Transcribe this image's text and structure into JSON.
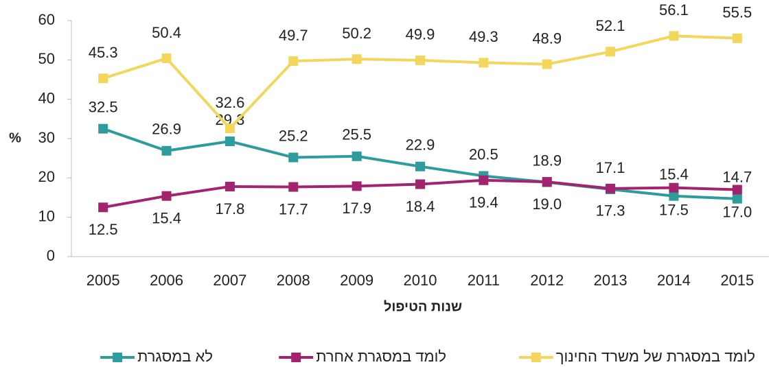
{
  "chart_data": {
    "type": "line",
    "y_label": "%",
    "x_label": "שנות הטיפול",
    "categories": [
      "2005",
      "2006",
      "2007",
      "2008",
      "2009",
      "2010",
      "2011",
      "2012",
      "2013",
      "2014",
      "2015"
    ],
    "series": [
      {
        "name": "לא במסגרת",
        "color": "#2e9c9c",
        "values": [
          32.5,
          26.9,
          29.3,
          25.2,
          25.5,
          22.9,
          20.5,
          18.9,
          17.1,
          15.4,
          14.7
        ]
      },
      {
        "name": "לומד במסגרת אחרת",
        "color": "#a2246e",
        "values": [
          12.5,
          15.4,
          17.8,
          17.7,
          17.9,
          18.4,
          19.4,
          19.0,
          17.3,
          17.5,
          17.0
        ],
        "value_labels": [
          "12.5",
          "15.4",
          "17.8",
          "17.7",
          "17.9",
          "18.4",
          "19.4",
          "19.0",
          "17.3",
          "17.5",
          "17.0"
        ]
      },
      {
        "name": "לומד במסגרת של משרד החינוך",
        "color": "#f3d65c",
        "values": [
          45.3,
          50.4,
          32.6,
          49.7,
          50.2,
          49.9,
          49.3,
          48.9,
          52.1,
          56.1,
          55.5
        ]
      }
    ],
    "ylim": [
      0,
      60
    ],
    "yticks": [
      0,
      10,
      20,
      30,
      40,
      50,
      60
    ],
    "grid": false,
    "legend": "bottom"
  }
}
